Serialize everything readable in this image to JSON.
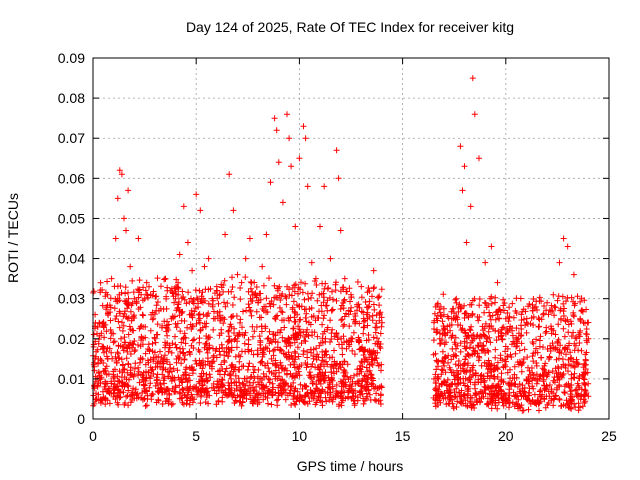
{
  "chart_data": {
    "type": "scatter",
    "title": "Day 124 of 2025, Rate Of TEC Index for receiver kitg",
    "xlabel": "GPS time / hours",
    "ylabel": "ROTI / TECUs",
    "xlim": [
      0,
      25
    ],
    "ylim": [
      0,
      0.09
    ],
    "xticks": [
      0,
      5,
      10,
      15,
      20,
      25
    ],
    "xtick_labels": [
      "0",
      "5",
      "10",
      "15",
      "20",
      "25"
    ],
    "yticks": [
      0,
      0.01,
      0.02,
      0.03,
      0.04,
      0.05,
      0.06,
      0.07,
      0.08,
      0.09
    ],
    "ytick_labels": [
      "0",
      "0.01",
      "0.02",
      "0.03",
      "0.04",
      "0.05",
      "0.06",
      "0.07",
      "0.08",
      "0.09"
    ],
    "grid": true,
    "marker": "+",
    "color": "#ff0000",
    "series": [
      {
        "name": "ROTI",
        "x": [
          0.1,
          0.3,
          0.5,
          0.7,
          0.9,
          1.1,
          1.2,
          1.3,
          1.4,
          1.5,
          1.6,
          1.7,
          1.8,
          2.0,
          2.2,
          2.4,
          2.6,
          2.8,
          3.0,
          3.2,
          3.5,
          3.8,
          4.0,
          4.2,
          4.4,
          4.6,
          4.8,
          5.0,
          5.2,
          5.4,
          5.6,
          5.8,
          6.0,
          6.2,
          6.4,
          6.6,
          6.8,
          7.0,
          7.2,
          7.4,
          7.6,
          7.8,
          8.0,
          8.2,
          8.4,
          8.6,
          8.8,
          8.9,
          9.0,
          9.2,
          9.4,
          9.5,
          9.6,
          9.8,
          10.0,
          10.2,
          10.3,
          10.4,
          10.6,
          10.8,
          11.0,
          11.2,
          11.5,
          11.8,
          11.9,
          12.0,
          12.2,
          12.5,
          12.8,
          13.0,
          13.3,
          13.6,
          13.9,
          14.0,
          16.5,
          16.8,
          17.0,
          17.3,
          17.6,
          17.8,
          17.9,
          18.0,
          18.1,
          18.3,
          18.4,
          18.5,
          18.7,
          19.0,
          19.3,
          19.6,
          20.0,
          20.3,
          20.6,
          21.0,
          21.3,
          21.6,
          22.0,
          22.3,
          22.6,
          22.8,
          23.0,
          23.3,
          23.6,
          24.0,
          0.2,
          0.6,
          1.0,
          1.4,
          1.9,
          2.5,
          3.1,
          3.7,
          4.3,
          4.9,
          5.5,
          6.1,
          6.7,
          7.3,
          7.9,
          8.5,
          9.1,
          9.7,
          10.3,
          10.9,
          11.5,
          12.1,
          12.7,
          13.3,
          13.9,
          16.6,
          17.2,
          17.8,
          18.4,
          19.0,
          19.6,
          20.2,
          20.8,
          21.4,
          22.0,
          22.6,
          23.2,
          23.8
        ],
        "y": [
          0.015,
          0.024,
          0.018,
          0.031,
          0.035,
          0.045,
          0.055,
          0.062,
          0.061,
          0.05,
          0.047,
          0.057,
          0.038,
          0.03,
          0.045,
          0.026,
          0.034,
          0.022,
          0.02,
          0.027,
          0.035,
          0.025,
          0.03,
          0.041,
          0.053,
          0.044,
          0.037,
          0.056,
          0.052,
          0.038,
          0.04,
          0.028,
          0.033,
          0.025,
          0.046,
          0.061,
          0.052,
          0.036,
          0.034,
          0.04,
          0.045,
          0.031,
          0.029,
          0.038,
          0.046,
          0.059,
          0.075,
          0.072,
          0.064,
          0.054,
          0.076,
          0.07,
          0.063,
          0.048,
          0.065,
          0.073,
          0.07,
          0.058,
          0.039,
          0.035,
          0.048,
          0.058,
          0.04,
          0.067,
          0.06,
          0.047,
          0.035,
          0.031,
          0.028,
          0.033,
          0.025,
          0.037,
          0.026,
          0.024,
          0.016,
          0.02,
          0.026,
          0.022,
          0.03,
          0.068,
          0.057,
          0.063,
          0.044,
          0.053,
          0.085,
          0.076,
          0.065,
          0.039,
          0.043,
          0.034,
          0.025,
          0.022,
          0.02,
          0.024,
          0.027,
          0.023,
          0.029,
          0.031,
          0.039,
          0.045,
          0.043,
          0.036,
          0.025,
          0.02,
          0.01,
          0.012,
          0.008,
          0.009,
          0.011,
          0.007,
          0.009,
          0.006,
          0.01,
          0.008,
          0.011,
          0.007,
          0.009,
          0.006,
          0.008,
          0.01,
          0.007,
          0.009,
          0.008,
          0.011,
          0.006,
          0.009,
          0.007,
          0.01,
          0.008,
          0.009,
          0.007,
          0.01,
          0.011,
          0.008,
          0.006,
          0.009,
          0.007,
          0.004,
          0.008,
          0.01,
          0.007,
          0.009
        ]
      }
    ],
    "dense_bands": [
      {
        "x_start": 0,
        "x_end": 14.0,
        "y_low": 0.003,
        "y_high": 0.032
      },
      {
        "x_start": 16.5,
        "x_end": 24.0,
        "y_low": 0.002,
        "y_high": 0.028
      }
    ]
  }
}
